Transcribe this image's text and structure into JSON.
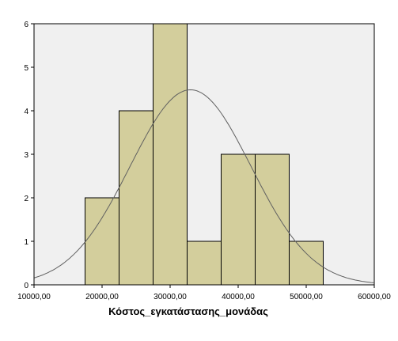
{
  "chart_data": {
    "type": "bar",
    "subtype": "histogram",
    "title": "",
    "xlabel": "Κόστος_εγκατάστασης_μονάδας",
    "ylabel": "",
    "xlim": [
      10000,
      60000
    ],
    "ylim": [
      0,
      6
    ],
    "x_ticks": [
      10000,
      20000,
      30000,
      40000,
      50000,
      60000
    ],
    "x_tick_labels": [
      "10000,00",
      "20000,00",
      "30000,00",
      "40000,00",
      "50000,00",
      "60000,00"
    ],
    "y_ticks": [
      0,
      1,
      2,
      3,
      4,
      5,
      6
    ],
    "y_tick_labels": [
      "0",
      "1",
      "2",
      "3",
      "4",
      "5",
      "6"
    ],
    "bins": [
      {
        "start": 17500,
        "end": 22500,
        "count": 2
      },
      {
        "start": 22500,
        "end": 27500,
        "count": 4
      },
      {
        "start": 27500,
        "end": 32500,
        "count": 6
      },
      {
        "start": 32500,
        "end": 37500,
        "count": 1
      },
      {
        "start": 37500,
        "end": 42500,
        "count": 3
      },
      {
        "start": 42500,
        "end": 47500,
        "count": 3
      },
      {
        "start": 47500,
        "end": 52500,
        "count": 1
      }
    ],
    "normal_curve": {
      "mean": 33000,
      "sd": 8900,
      "n": 20,
      "bin_width": 5000
    },
    "colors": {
      "bar_fill": "#d3ce9c",
      "bar_stroke": "#000000",
      "plot_background": "#f0f0f0",
      "curve": "#606060"
    },
    "grid": false,
    "legend": "none"
  }
}
